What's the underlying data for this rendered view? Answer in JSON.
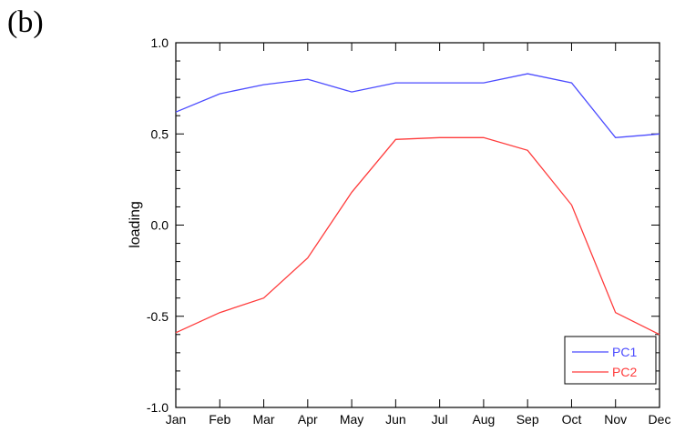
{
  "panel_label": "(b)",
  "chart_data": {
    "type": "line",
    "categories": [
      "Jan",
      "Feb",
      "Mar",
      "Apr",
      "May",
      "Jun",
      "Jul",
      "Aug",
      "Sep",
      "Oct",
      "Nov",
      "Dec"
    ],
    "series": [
      {
        "name": "PC1",
        "color": "#4b4bff",
        "values": [
          0.62,
          0.72,
          0.77,
          0.8,
          0.73,
          0.78,
          0.78,
          0.78,
          0.83,
          0.78,
          0.48,
          0.5
        ]
      },
      {
        "name": "PC2",
        "color": "#ff3b3b",
        "values": [
          -0.59,
          -0.48,
          -0.4,
          -0.18,
          0.18,
          0.47,
          0.48,
          0.48,
          0.41,
          0.11,
          -0.48,
          -0.6
        ]
      }
    ],
    "xlabel": "",
    "ylabel": "loading",
    "ylim": [
      -1.0,
      1.0
    ],
    "yticks": [
      "1.0",
      "0.5",
      "0.0",
      "-0.5",
      "-1.0"
    ],
    "legend_position": "bottom-right",
    "grid": false
  }
}
